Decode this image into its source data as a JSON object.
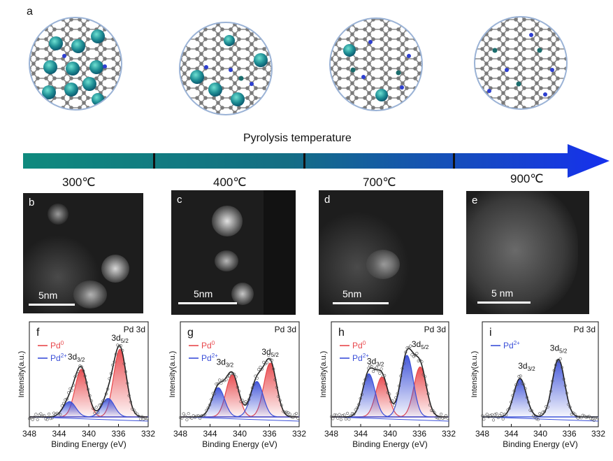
{
  "figure": {
    "panel_a_label": "a",
    "arrow_title": "Pyrolysis temperature",
    "temperatures": [
      "300℃",
      "400℃",
      "700℃",
      "900℃"
    ]
  },
  "em_panels": [
    {
      "letter": "b",
      "scale": "5nm"
    },
    {
      "letter": "c",
      "scale": "5nm"
    },
    {
      "letter": "d",
      "scale": "5nm"
    },
    {
      "letter": "e",
      "scale": "5 nm"
    }
  ],
  "colors": {
    "pd0": "#e8474b",
    "pd2": "#3a4fd8",
    "arrow_start": "#0f8a7e",
    "arrow_end": "#1630ee"
  },
  "chart_data": [
    {
      "type": "line",
      "panel": "f",
      "title": "Pd 3d",
      "xlabel": "Binding Energy (eV)",
      "ylabel": "Intensity(a.u.)",
      "xlim": [
        348,
        332
      ],
      "xticks": [
        348,
        344,
        340,
        336,
        332
      ],
      "legend": [
        "Pd0",
        "Pd2+"
      ],
      "peak_labels": [
        "3d3/2",
        "3d5/2"
      ],
      "series": [
        {
          "name": "Pd0",
          "peaks": [
            {
              "center": 341.0,
              "height": 0.62
            },
            {
              "center": 335.8,
              "height": 0.88
            }
          ]
        },
        {
          "name": "Pd2+",
          "peaks": [
            {
              "center": 342.6,
              "height": 0.2
            },
            {
              "center": 337.4,
              "height": 0.24
            }
          ]
        }
      ]
    },
    {
      "type": "line",
      "panel": "g",
      "title": "Pd 3d",
      "xlabel": "Binding Energy (eV)",
      "ylabel": "Intensity(a.u.)",
      "xlim": [
        348,
        332
      ],
      "xticks": [
        348,
        344,
        340,
        336,
        332
      ],
      "legend": [
        "Pd0",
        "Pd2+"
      ],
      "peak_labels": [
        "3d3/2",
        "3d5/2"
      ],
      "series": [
        {
          "name": "Pd0",
          "peaks": [
            {
              "center": 341.0,
              "height": 0.55
            },
            {
              "center": 335.9,
              "height": 0.7
            }
          ]
        },
        {
          "name": "Pd2+",
          "peaks": [
            {
              "center": 342.9,
              "height": 0.38
            },
            {
              "center": 337.7,
              "height": 0.46
            }
          ]
        }
      ]
    },
    {
      "type": "line",
      "panel": "h",
      "title": "Pd 3d",
      "xlabel": "Binding Energy (eV)",
      "ylabel": "Intensity(a.u.)",
      "xlim": [
        348,
        332
      ],
      "xticks": [
        348,
        344,
        340,
        336,
        332
      ],
      "legend": [
        "Pd0",
        "Pd2+"
      ],
      "peak_labels": [
        "3d3/2",
        "3d5/2"
      ],
      "series": [
        {
          "name": "Pd0",
          "peaks": [
            {
              "center": 341.1,
              "height": 0.52
            },
            {
              "center": 335.9,
              "height": 0.65
            }
          ]
        },
        {
          "name": "Pd2+",
          "peaks": [
            {
              "center": 342.9,
              "height": 0.56
            },
            {
              "center": 337.7,
              "height": 0.8
            }
          ]
        }
      ]
    },
    {
      "type": "line",
      "panel": "i",
      "title": "Pd 3d",
      "xlabel": "Binding Energy (eV)",
      "ylabel": "Intensity(a.u.)",
      "xlim": [
        348,
        332
      ],
      "xticks": [
        348,
        344,
        340,
        336,
        332
      ],
      "legend": [
        "Pd2+"
      ],
      "peak_labels": [
        "3d3/2",
        "3d5/2"
      ],
      "series": [
        {
          "name": "Pd2+",
          "peaks": [
            {
              "center": 342.8,
              "height": 0.5
            },
            {
              "center": 337.5,
              "height": 0.75
            }
          ]
        }
      ]
    }
  ]
}
